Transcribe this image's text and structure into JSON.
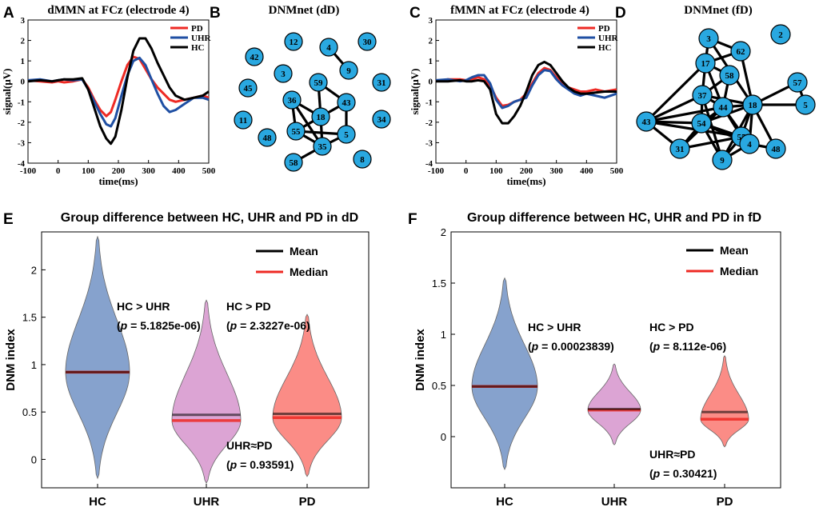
{
  "colors": {
    "pd": "#ee2a24",
    "uhr": "#1f4fa3",
    "hc": "#000000",
    "node": "#29a8e0",
    "violin_hc": "#86a2cd",
    "violin_uhr": "#dca4d4",
    "violin_pd": "#fb8c86",
    "median": "#ee2a24"
  },
  "panel_letters": [
    "A",
    "B",
    "C",
    "D",
    "E",
    "F"
  ],
  "chart_data": [
    {
      "id": "A",
      "type": "line",
      "title": "dMMN at FCz (electrode 4)",
      "xlabel": "time(ms)",
      "ylabel": "signal(μV)",
      "xlim": [
        -100,
        500
      ],
      "ylim": [
        -4,
        3
      ],
      "xticks": [
        "-100",
        "0",
        "100",
        "200",
        "300",
        "400",
        "500"
      ],
      "yticks": [
        "-4",
        "-3",
        "-2",
        "-1",
        "0",
        "1",
        "2",
        "3"
      ],
      "legend": [
        "PD",
        "UHR",
        "HC"
      ],
      "series": [
        {
          "name": "PD",
          "x": [
            -100,
            -60,
            -20,
            0,
            20,
            50,
            80,
            100,
            120,
            140,
            160,
            175,
            190,
            210,
            230,
            250,
            270,
            290,
            310,
            330,
            350,
            370,
            390,
            420,
            450,
            480,
            500
          ],
          "y": [
            0.05,
            0.0,
            -0.05,
            0.0,
            -0.05,
            0.0,
            0.1,
            -0.3,
            -0.9,
            -1.4,
            -1.7,
            -1.5,
            -0.9,
            0.0,
            0.8,
            1.2,
            1.1,
            0.6,
            0.1,
            -0.3,
            -0.6,
            -0.9,
            -1.0,
            -0.9,
            -0.8,
            -0.7,
            -0.8
          ]
        },
        {
          "name": "UHR",
          "x": [
            -100,
            -60,
            -20,
            0,
            20,
            50,
            80,
            100,
            120,
            140,
            160,
            175,
            190,
            210,
            230,
            250,
            270,
            290,
            310,
            330,
            350,
            370,
            390,
            420,
            450,
            480,
            500
          ],
          "y": [
            0.05,
            0.1,
            0.0,
            0.05,
            0.1,
            0.05,
            0.1,
            -0.4,
            -1.0,
            -1.6,
            -2.1,
            -2.2,
            -1.8,
            -0.7,
            0.3,
            1.0,
            1.15,
            0.8,
            0.1,
            -0.6,
            -1.2,
            -1.5,
            -1.4,
            -1.1,
            -0.8,
            -0.8,
            -0.9
          ]
        },
        {
          "name": "HC",
          "x": [
            -100,
            -60,
            -20,
            0,
            20,
            50,
            80,
            100,
            120,
            140,
            160,
            175,
            190,
            210,
            230,
            250,
            270,
            290,
            310,
            330,
            350,
            370,
            390,
            420,
            450,
            480,
            500
          ],
          "y": [
            0.0,
            0.05,
            0.0,
            0.05,
            0.1,
            0.1,
            0.15,
            -0.4,
            -1.3,
            -2.2,
            -2.8,
            -3.05,
            -2.7,
            -1.4,
            0.2,
            1.5,
            2.1,
            2.1,
            1.6,
            0.9,
            0.3,
            -0.3,
            -0.7,
            -0.9,
            -0.8,
            -0.7,
            -0.5
          ]
        }
      ]
    },
    {
      "id": "B",
      "type": "network",
      "title": "DNMnet (dD)",
      "nodes": [
        "12",
        "30",
        "42",
        "4",
        "9",
        "3",
        "45",
        "59",
        "31",
        "36",
        "43",
        "11",
        "18",
        "34",
        "55",
        "5",
        "48",
        "35",
        "8",
        "58"
      ],
      "edges": [
        [
          "4",
          "9"
        ],
        [
          "59",
          "43"
        ],
        [
          "59",
          "18"
        ],
        [
          "36",
          "18"
        ],
        [
          "36",
          "55"
        ],
        [
          "43",
          "18"
        ],
        [
          "43",
          "5"
        ],
        [
          "18",
          "55"
        ],
        [
          "18",
          "35"
        ],
        [
          "55",
          "35"
        ],
        [
          "55",
          "5"
        ],
        [
          "35",
          "5"
        ],
        [
          "35",
          "58"
        ],
        [
          "36",
          "35"
        ]
      ]
    },
    {
      "id": "C",
      "type": "line",
      "title": "fMMN at FCz (electrode 4)",
      "xlabel": "time(ms)",
      "ylabel": "signal(μV)",
      "xlim": [
        -100,
        500
      ],
      "ylim": [
        -4,
        3
      ],
      "xticks": [
        "-100",
        "0",
        "100",
        "200",
        "300",
        "400",
        "500"
      ],
      "yticks": [
        "-4",
        "-3",
        "-2",
        "-1",
        "0",
        "1",
        "2",
        "3"
      ],
      "legend": [
        "PD",
        "UHR",
        "HC"
      ],
      "series": [
        {
          "name": "PD",
          "x": [
            -100,
            -60,
            -20,
            0,
            20,
            40,
            60,
            80,
            100,
            120,
            140,
            160,
            180,
            200,
            220,
            240,
            260,
            280,
            300,
            320,
            340,
            360,
            380,
            400,
            430,
            460,
            500
          ],
          "y": [
            0.0,
            0.1,
            0.1,
            0.05,
            0.1,
            0.2,
            0.1,
            -0.2,
            -0.8,
            -1.2,
            -1.15,
            -1.0,
            -0.9,
            -0.6,
            -0.1,
            0.4,
            0.65,
            0.55,
            0.2,
            -0.1,
            -0.3,
            -0.4,
            -0.5,
            -0.5,
            -0.4,
            -0.5,
            -0.4
          ]
        },
        {
          "name": "UHR",
          "x": [
            -100,
            -60,
            -20,
            0,
            20,
            40,
            60,
            80,
            100,
            120,
            140,
            160,
            180,
            200,
            220,
            240,
            260,
            280,
            300,
            320,
            340,
            360,
            380,
            400,
            430,
            460,
            500
          ],
          "y": [
            0.05,
            0.1,
            0.0,
            0.05,
            0.2,
            0.3,
            0.3,
            -0.1,
            -0.9,
            -1.3,
            -1.2,
            -1.0,
            -0.9,
            -0.8,
            -0.2,
            0.3,
            0.55,
            0.5,
            0.1,
            -0.2,
            -0.4,
            -0.6,
            -0.7,
            -0.6,
            -0.7,
            -0.8,
            -0.6
          ]
        },
        {
          "name": "HC",
          "x": [
            -100,
            -60,
            -20,
            0,
            20,
            40,
            60,
            80,
            100,
            120,
            140,
            160,
            180,
            200,
            220,
            240,
            260,
            280,
            300,
            320,
            340,
            360,
            380,
            400,
            430,
            460,
            500
          ],
          "y": [
            0.0,
            0.0,
            0.05,
            0.0,
            0.0,
            0.05,
            0.0,
            -0.4,
            -1.6,
            -2.05,
            -2.05,
            -1.7,
            -1.2,
            -0.5,
            0.3,
            0.8,
            0.95,
            0.8,
            0.4,
            0.0,
            -0.3,
            -0.5,
            -0.6,
            -0.6,
            -0.55,
            -0.5,
            -0.5
          ]
        }
      ]
    },
    {
      "id": "D",
      "type": "network",
      "title": "DNMnet (fD)",
      "nodes": [
        "3",
        "2",
        "62",
        "17",
        "58",
        "57",
        "37",
        "44",
        "18",
        "5",
        "43",
        "54",
        "55",
        "4",
        "48",
        "31",
        "9"
      ],
      "edges": [
        [
          "3",
          "17"
        ],
        [
          "3",
          "62"
        ],
        [
          "3",
          "18"
        ],
        [
          "62",
          "17"
        ],
        [
          "62",
          "18"
        ],
        [
          "17",
          "58"
        ],
        [
          "17",
          "37"
        ],
        [
          "17",
          "44"
        ],
        [
          "17",
          "43"
        ],
        [
          "58",
          "44"
        ],
        [
          "58",
          "37"
        ],
        [
          "37",
          "44"
        ],
        [
          "37",
          "18"
        ],
        [
          "37",
          "43"
        ],
        [
          "37",
          "54"
        ],
        [
          "44",
          "18"
        ],
        [
          "44",
          "54"
        ],
        [
          "44",
          "55"
        ],
        [
          "44",
          "4"
        ],
        [
          "44",
          "31"
        ],
        [
          "44",
          "43"
        ],
        [
          "18",
          "57"
        ],
        [
          "18",
          "5"
        ],
        [
          "18",
          "54"
        ],
        [
          "18",
          "55"
        ],
        [
          "18",
          "4"
        ],
        [
          "18",
          "9"
        ],
        [
          "18",
          "48"
        ],
        [
          "57",
          "5"
        ],
        [
          "43",
          "54"
        ],
        [
          "43",
          "31"
        ],
        [
          "43",
          "55"
        ],
        [
          "54",
          "55"
        ],
        [
          "54",
          "31"
        ],
        [
          "54",
          "9"
        ],
        [
          "54",
          "4"
        ],
        [
          "55",
          "4"
        ],
        [
          "55",
          "9"
        ],
        [
          "55",
          "31"
        ],
        [
          "4",
          "48"
        ],
        [
          "4",
          "9"
        ],
        [
          "9",
          "37"
        ]
      ]
    },
    {
      "id": "E",
      "type": "violin",
      "title": "Group difference between HC, UHR and PD in dD",
      "ylabel": "DNM index",
      "ylim": [
        -0.3,
        2.4
      ],
      "yticks": [
        "0",
        "0.5",
        "1",
        "1.5",
        "2"
      ],
      "categories": [
        "HC",
        "UHR",
        "PD"
      ],
      "legend": [
        "Mean",
        "Median"
      ],
      "groups": [
        {
          "name": "HC",
          "min": -0.2,
          "max": 2.35,
          "mean": 0.92,
          "median": 0.92
        },
        {
          "name": "UHR",
          "min": -0.25,
          "max": 1.68,
          "mean": 0.47,
          "median": 0.41
        },
        {
          "name": "PD",
          "min": -0.18,
          "max": 1.53,
          "mean": 0.48,
          "median": 0.44
        }
      ],
      "annotations": [
        {
          "line1": "HC > UHR",
          "line2_p": "p",
          "line2_rest": " = 5.1825e-06)"
        },
        {
          "line1": "HC > PD",
          "line2_p": "p",
          "line2_rest": " = 2.3227e-06)"
        },
        {
          "line1": "UHR≈PD",
          "line2_p": "p",
          "line2_rest": " = 0.93591)"
        }
      ]
    },
    {
      "id": "F",
      "type": "violin",
      "title": "Group difference between HC, UHR and PD in fD",
      "ylabel": "DNM index",
      "ylim": [
        -0.5,
        2.0
      ],
      "yticks": [
        "0",
        "0.5",
        "1",
        "1.5",
        "2"
      ],
      "categories": [
        "HC",
        "UHR",
        "PD"
      ],
      "legend": [
        "Mean",
        "Median"
      ],
      "groups": [
        {
          "name": "HC",
          "min": -0.32,
          "max": 1.55,
          "mean": 0.49,
          "median": 0.49
        },
        {
          "name": "UHR",
          "min": -0.08,
          "max": 0.71,
          "mean": 0.27,
          "median": 0.26
        },
        {
          "name": "PD",
          "min": -0.1,
          "max": 0.79,
          "mean": 0.24,
          "median": 0.17
        }
      ],
      "annotations": [
        {
          "line1": "HC > UHR",
          "line2_p": "p",
          "line2_rest": " = 0.00023839)"
        },
        {
          "line1": "HC > PD",
          "line2_p": "p",
          "line2_rest": " = 8.112e-06)"
        },
        {
          "line1": "UHR≈PD",
          "line2_p": "p",
          "line2_rest": " = 0.30421)"
        }
      ]
    }
  ]
}
